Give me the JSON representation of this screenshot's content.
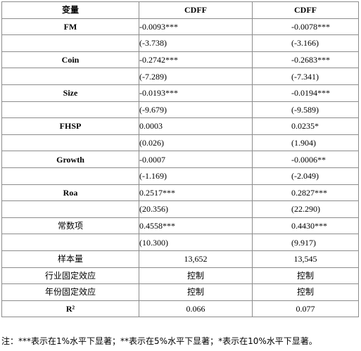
{
  "table": {
    "headers": [
      "变量",
      "CDFF",
      "CDFF"
    ],
    "rows": [
      {
        "name": "FM",
        "c1": "-0.0093***",
        "c2": "-0.0078***"
      },
      {
        "name": "",
        "c1": "(-3.738)",
        "c2": "(-3.166)"
      },
      {
        "name": "Coin",
        "c1": "-0.2742***",
        "c2": "-0.2683***"
      },
      {
        "name": "",
        "c1": "(-7.289)",
        "c2": "(-7.341)"
      },
      {
        "name": "Size",
        "c1": "-0.0193***",
        "c2": "-0.0194***"
      },
      {
        "name": "",
        "c1": "(-9.679)",
        "c2": "(-9.589)"
      },
      {
        "name": "FHSP",
        "c1": "0.0003",
        "c2": "0.0235*"
      },
      {
        "name": "",
        "c1": "(0.026)",
        "c2": "(1.904)"
      },
      {
        "name": "Growth",
        "c1": "-0.0007",
        "c2": "-0.0006**"
      },
      {
        "name": "",
        "c1": "(-1.169)",
        "c2": "(-2.049)"
      },
      {
        "name": "Roa",
        "c1": "0.2517***",
        "c2": "0.2827***"
      },
      {
        "name": "",
        "c1": "(20.356)",
        "c2": "(22.290)"
      },
      {
        "name": "常数项",
        "c1": "0.4558***",
        "c2": "0.4430***"
      },
      {
        "name": "",
        "c1": "(10.300)",
        "c2": "(9.917)"
      },
      {
        "name": "样本量",
        "c1": "13,652",
        "c2": "13,545"
      },
      {
        "name": "行业固定效应",
        "c1": "控制",
        "c2": "控制"
      },
      {
        "name": "年份固定效应",
        "c1": "控制",
        "c2": "控制"
      },
      {
        "name": "R²",
        "c1": "0.066",
        "c2": "0.077"
      }
    ]
  },
  "note": "注：***表示在1%水平下显著；**表示在5%水平下显著；*表示在10%水平下显著。"
}
